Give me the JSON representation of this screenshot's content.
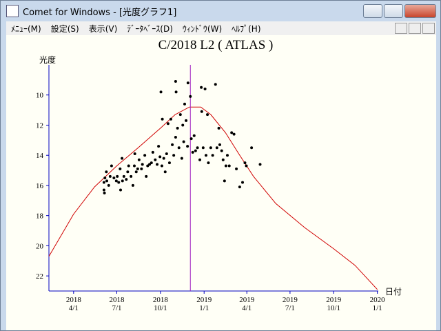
{
  "window": {
    "title": "Comet for Windows - [光度グラフ1]"
  },
  "menu": [
    "ﾒﾆｭｰ(M)",
    "設定(S)",
    "表示(V)",
    "ﾃﾞｰﾀﾍﾞｰｽ(D)",
    "ｳｨﾝﾄﾞｳ(W)",
    "ﾍﾙﾌﾟ(H)"
  ],
  "chart_data": {
    "type": "scatter",
    "title": "C/2018 L2 ( ATLAS )",
    "y_label": "光度",
    "x_label": "日付",
    "xlim": [
      "2018-02-08",
      "2020-01-03"
    ],
    "ylim": [
      23,
      8
    ],
    "xticks": [
      {
        "value": "2018-04-01",
        "label": [
          "2018",
          "4/1"
        ]
      },
      {
        "value": "2018-07-01",
        "label": [
          "2018",
          "7/1"
        ]
      },
      {
        "value": "2018-10-01",
        "label": [
          "2018",
          "10/1"
        ]
      },
      {
        "value": "2019-01-01",
        "label": [
          "2019",
          "1/1"
        ]
      },
      {
        "value": "2019-04-01",
        "label": [
          "2019",
          "4/1"
        ]
      },
      {
        "value": "2019-07-01",
        "label": [
          "2019",
          "7/1"
        ]
      },
      {
        "value": "2019-10-01",
        "label": [
          "2019",
          "10/1"
        ]
      },
      {
        "value": "2020-01-01",
        "label": [
          "2020",
          "1/1"
        ]
      }
    ],
    "yticks": [
      10,
      12,
      14,
      16,
      18,
      20,
      22
    ],
    "color": "#000000",
    "x": [
      "2018-06-04",
      "2018-06-04",
      "2018-06-05",
      "2018-06-06",
      "2018-06-09",
      "2018-06-10",
      "2018-06-14",
      "2018-06-17",
      "2018-06-20",
      "2018-06-25",
      "2018-06-30",
      "2018-07-02",
      "2018-07-05",
      "2018-07-08",
      "2018-07-09",
      "2018-07-12",
      "2018-07-13",
      "2018-07-16",
      "2018-07-21",
      "2018-07-24",
      "2018-07-26",
      "2018-07-31",
      "2018-08-04",
      "2018-08-07",
      "2018-08-08",
      "2018-08-11",
      "2018-08-14",
      "2018-08-17",
      "2018-08-22",
      "2018-08-24",
      "2018-08-29",
      "2018-09-01",
      "2018-09-04",
      "2018-09-08",
      "2018-09-12",
      "2018-09-15",
      "2018-09-20",
      "2018-09-24",
      "2018-09-27",
      "2018-09-30",
      "2018-10-02",
      "2018-10-04",
      "2018-10-05",
      "2018-10-08",
      "2018-10-11",
      "2018-10-14",
      "2018-10-17",
      "2018-10-20",
      "2018-10-23",
      "2018-10-26",
      "2018-10-29",
      "2018-11-02",
      "2018-11-02",
      "2018-11-03",
      "2018-11-06",
      "2018-11-09",
      "2018-11-12",
      "2018-11-15",
      "2018-11-17",
      "2018-11-19",
      "2018-11-21",
      "2018-11-24",
      "2018-11-27",
      "2018-11-28",
      "2018-12-03",
      "2018-12-05",
      "2018-12-08",
      "2018-12-11",
      "2018-12-14",
      "2018-12-18",
      "2018-12-23",
      "2018-12-26",
      "2018-12-27",
      "2018-12-30",
      "2019-01-03",
      "2019-01-05",
      "2019-01-08",
      "2019-01-10",
      "2019-01-15",
      "2019-01-19",
      "2019-01-25",
      "2019-01-28",
      "2019-02-01",
      "2019-02-03",
      "2019-02-07",
      "2019-02-10",
      "2019-02-13",
      "2019-02-16",
      "2019-02-19",
      "2019-02-23",
      "2019-02-28",
      "2019-03-05",
      "2019-03-10",
      "2019-03-17",
      "2019-03-23",
      "2019-03-28",
      "2019-03-31",
      "2019-04-11",
      "2019-04-29"
    ],
    "values": [
      15.8,
      16.3,
      16.5,
      15.5,
      15.1,
      15.7,
      16.0,
      15.4,
      14.7,
      15.5,
      15.7,
      15.4,
      15.8,
      14.9,
      16.3,
      14.2,
      15.7,
      15.4,
      15.6,
      15.1,
      14.7,
      15.4,
      16.0,
      14.7,
      13.9,
      15.1,
      14.9,
      14.3,
      14.9,
      14.6,
      14.0,
      15.4,
      14.7,
      14.6,
      14.5,
      13.8,
      14.3,
      14.6,
      13.4,
      14.1,
      9.8,
      14.7,
      11.6,
      14.2,
      15.1,
      13.9,
      11.9,
      14.5,
      11.6,
      13.3,
      14.0,
      9.1,
      12.8,
      9.8,
      12.2,
      13.5,
      11.3,
      14.2,
      12.0,
      13.1,
      10.6,
      11.7,
      13.4,
      9.2,
      10.1,
      12.9,
      13.8,
      12.7,
      13.7,
      13.5,
      14.3,
      9.5,
      11.1,
      13.5,
      9.6,
      14.0,
      11.3,
      14.5,
      13.5,
      14.0,
      9.3,
      13.5,
      12.2,
      13.3,
      13.7,
      14.3,
      15.7,
      14.7,
      14.0,
      14.7,
      12.5,
      12.6,
      14.9,
      16.1,
      15.8,
      14.5,
      14.7,
      13.5,
      14.6
    ],
    "curve": {
      "color": "#d00000",
      "x": [
        "2018-02-08",
        "2018-04-01",
        "2018-05-15",
        "2018-07-01",
        "2018-08-15",
        "2018-10-01",
        "2018-11-01",
        "2018-12-01",
        "2018-12-25",
        "2019-01-15",
        "2019-02-15",
        "2019-03-15",
        "2019-04-15",
        "2019-06-01",
        "2019-08-01",
        "2019-10-01",
        "2019-11-15",
        "2020-01-01"
      ],
      "values": [
        20.7,
        17.9,
        16.1,
        14.7,
        13.5,
        12.2,
        11.3,
        10.8,
        10.8,
        11.3,
        12.5,
        13.9,
        15.4,
        17.2,
        18.8,
        20.2,
        21.3,
        22.9
      ]
    },
    "vline": {
      "x": "2018-12-03",
      "color": "#a020c0"
    }
  }
}
